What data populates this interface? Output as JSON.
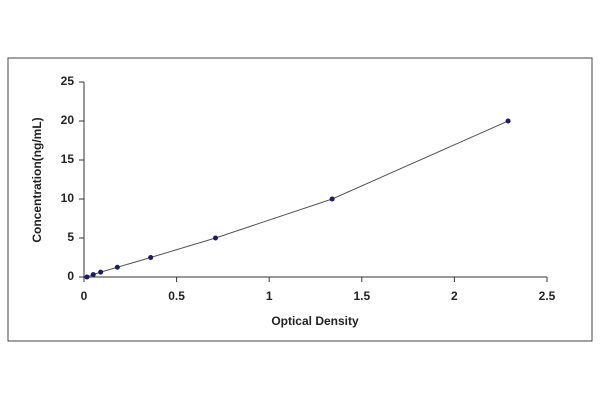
{
  "chart_data": {
    "type": "scatter",
    "x_label": "Optical Density",
    "y_label": "Concentration(ng/mL)",
    "series": [
      {
        "color": "#1a1a6e",
        "line_color": "#555555",
        "x": [
          0.016,
          0.05,
          0.09,
          0.18,
          0.36,
          0.71,
          1.34,
          2.29
        ],
        "values": [
          0,
          0.312,
          0.625,
          1.25,
          2.5,
          5,
          10,
          20
        ]
      }
    ],
    "xlim": [
      0,
      2.5
    ],
    "xticks": [
      0,
      0.5,
      1,
      1.5,
      2,
      2.5
    ],
    "ylim": [
      0,
      25
    ],
    "yticks": [
      0,
      5,
      10,
      15,
      20,
      25
    ],
    "grid": false
  }
}
